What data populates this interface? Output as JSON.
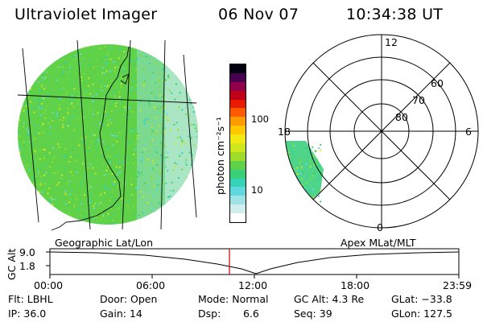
{
  "header": {
    "instrument": "Ultraviolet Imager",
    "date": "06 Nov 07",
    "time": "10:34:38 UT"
  },
  "colorbar": {
    "unit_label": "photon cm⁻²s⁻¹",
    "ticks": [
      "100",
      "10"
    ],
    "colors": [
      "#ffffff",
      "#cfeeee",
      "#9fe3e6",
      "#5fd8df",
      "#34d3b6",
      "#39d07a",
      "#5fd24a",
      "#9fdc2a",
      "#cfe61c",
      "#f2e812",
      "#ffc800",
      "#ff9a00",
      "#ff5a00",
      "#e81a00",
      "#c00018",
      "#90004a",
      "#4a0050",
      "#000010"
    ]
  },
  "polar_plot": {
    "ring_labels": [
      "80",
      "70",
      "60"
    ],
    "hour_labels": {
      "top": "12",
      "left": "18",
      "right": "6",
      "bottom": "0"
    },
    "fill_color": "#3fd38a"
  },
  "geo_image": {
    "base_color": "#5fd24a"
  },
  "altitude_plot": {
    "left_label": "Geographic Lat/Lon",
    "right_label": "Apex MLat/MLT",
    "y_axis_title": "GC Alt",
    "y_ticks": [
      "9.0",
      "1.8"
    ],
    "x_ticks": [
      "00:00",
      "06:00",
      "12:00",
      "18:00",
      "23:59"
    ],
    "marker_color": "#cc0000"
  },
  "footer": {
    "flt": "Flt: LBHL",
    "ip": "IP: 36.0",
    "door": "Door: Open",
    "gain": "Gain: 14",
    "mode": "Mode: Normal",
    "dsp_label": "Dsp:",
    "dsp_value": "6.6",
    "gc_alt": "GC Alt: 4.3 Re",
    "seq": "Seq: 39",
    "glat": "GLat: −33.8",
    "glon": "GLon: 127.5"
  }
}
